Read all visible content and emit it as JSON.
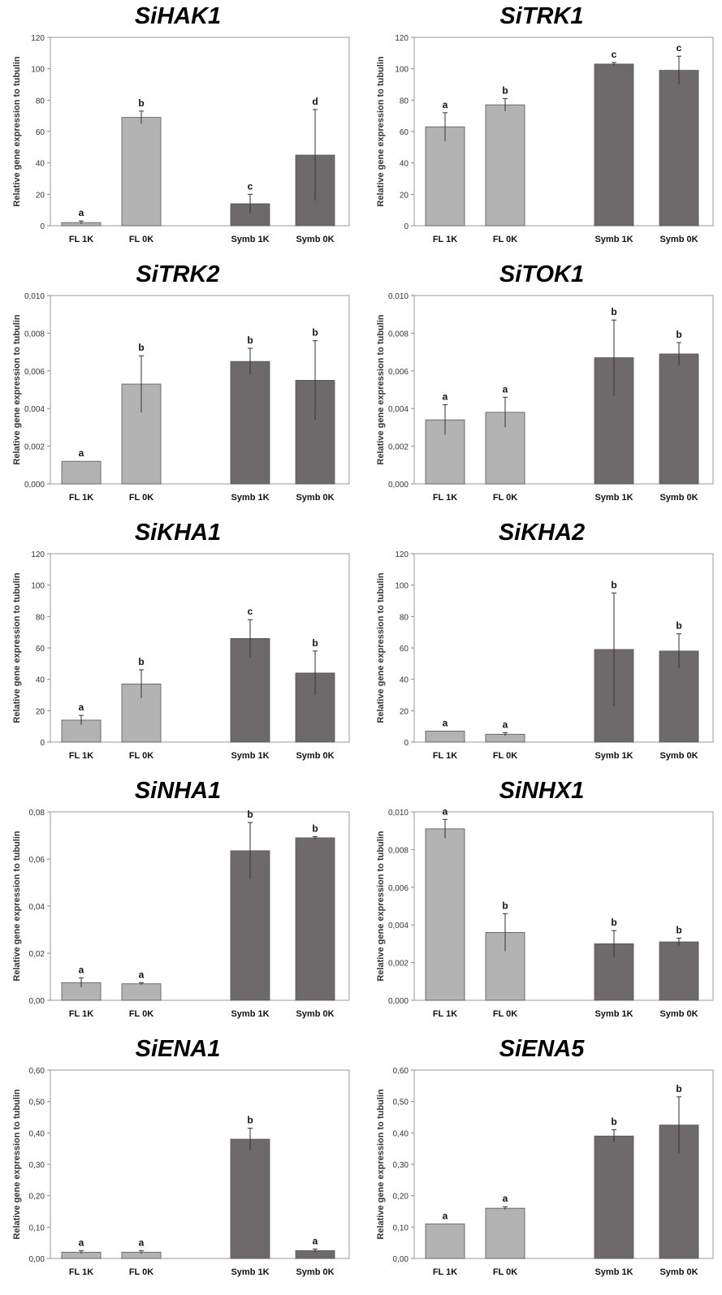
{
  "colors": {
    "fl": "#b3b3b3",
    "symb": "#6e6a6b",
    "axis": "#8a8a8a",
    "frame": "#999999"
  },
  "ylabel_text": "Relative gene expression to tubulin",
  "chart_data": [
    {
      "type": "bar",
      "title": "SiHAK1",
      "xlabel": "",
      "ylabel": "Relative gene expression to tubulin",
      "categories": [
        "FL 1K",
        "FL 0K",
        "Symb 1K",
        "Symb 0K"
      ],
      "values": [
        2,
        69,
        14,
        45
      ],
      "errors": [
        1,
        4,
        6,
        29
      ],
      "letters": [
        "a",
        "b",
        "c",
        "d"
      ],
      "ylim": [
        0,
        120
      ],
      "yticks": [
        "0",
        "20",
        "40",
        "60",
        "80",
        "100",
        "120"
      ],
      "grid": false
    },
    {
      "type": "bar",
      "title": "SiTRK1",
      "xlabel": "",
      "ylabel": "Relative gene expression to tubulin",
      "categories": [
        "FL 1K",
        "FL 0K",
        "Symb 1K",
        "Symb 0K"
      ],
      "values": [
        63,
        77,
        103,
        99
      ],
      "errors": [
        9,
        4,
        1,
        9
      ],
      "letters": [
        "a",
        "b",
        "c",
        "c"
      ],
      "ylim": [
        0,
        120
      ],
      "yticks": [
        "0",
        "20",
        "40",
        "60",
        "80",
        "100",
        "120"
      ],
      "grid": false
    },
    {
      "type": "bar",
      "title": "SiTRK2",
      "xlabel": "",
      "ylabel": "Relative gene expression to tubulin",
      "categories": [
        "FL 1K",
        "FL 0K",
        "Symb 1K",
        "Symb 0K"
      ],
      "values": [
        0.0012,
        0.0053,
        0.0065,
        0.0055
      ],
      "errors": [
        0,
        0.0015,
        0.0007,
        0.0021
      ],
      "letters": [
        "a",
        "b",
        "b",
        "b"
      ],
      "ylim": [
        0,
        0.01
      ],
      "yticks": [
        "0,000",
        "0,002",
        "0,004",
        "0,006",
        "0,008",
        "0,010"
      ],
      "grid": false
    },
    {
      "type": "bar",
      "title": "SiTOK1",
      "xlabel": "",
      "ylabel": "Relative gene expression to tubulin",
      "categories": [
        "FL 1K",
        "FL 0K",
        "Symb 1K",
        "Symb 0K"
      ],
      "values": [
        0.0034,
        0.0038,
        0.0067,
        0.0069
      ],
      "errors": [
        0.0008,
        0.0008,
        0.002,
        0.0006
      ],
      "letters": [
        "a",
        "a",
        "b",
        "b"
      ],
      "ylim": [
        0,
        0.01
      ],
      "yticks": [
        "0,000",
        "0,002",
        "0,004",
        "0,006",
        "0,008",
        "0,010"
      ],
      "grid": false
    },
    {
      "type": "bar",
      "title": "SiKHA1",
      "xlabel": "",
      "ylabel": "Relative gene expression to tubulin",
      "categories": [
        "FL 1K",
        "FL 0K",
        "Symb 1K",
        "Symb 0K"
      ],
      "values": [
        14,
        37,
        66,
        44
      ],
      "errors": [
        3,
        9,
        12,
        14
      ],
      "letters": [
        "a",
        "b",
        "c",
        "b"
      ],
      "ylim": [
        0,
        120
      ],
      "yticks": [
        "0",
        "20",
        "40",
        "60",
        "80",
        "100",
        "120"
      ],
      "grid": false
    },
    {
      "type": "bar",
      "title": "SiKHA2",
      "xlabel": "",
      "ylabel": "Relative gene expression to tubulin",
      "categories": [
        "FL 1K",
        "FL 0K",
        "Symb 1K",
        "Symb 0K"
      ],
      "values": [
        7,
        5,
        59,
        58
      ],
      "errors": [
        0,
        1,
        36,
        11
      ],
      "letters": [
        "a",
        "a",
        "b",
        "b"
      ],
      "ylim": [
        0,
        120
      ],
      "yticks": [
        "0",
        "20",
        "40",
        "60",
        "80",
        "100",
        "120"
      ],
      "grid": false
    },
    {
      "type": "bar",
      "title": "SiNHA1",
      "xlabel": "",
      "ylabel": "Relative gene expression to tubulin",
      "categories": [
        "FL 1K",
        "FL 0K",
        "Symb 1K",
        "Symb 0K"
      ],
      "values": [
        0.0075,
        0.007,
        0.0635,
        0.069
      ],
      "errors": [
        0.002,
        0.0005,
        0.012,
        0.0005
      ],
      "letters": [
        "a",
        "a",
        "b",
        "b"
      ],
      "ylim": [
        0,
        0.08
      ],
      "yticks": [
        "0,00",
        "0,02",
        "0,04",
        "0,06",
        "0,08"
      ],
      "grid": false
    },
    {
      "type": "bar",
      "title": "SiNHX1",
      "xlabel": "",
      "ylabel": "Relative gene expression to tubulin",
      "categories": [
        "FL 1K",
        "FL 0K",
        "Symb 1K",
        "Symb 0K"
      ],
      "values": [
        0.0091,
        0.0036,
        0.003,
        0.0031
      ],
      "errors": [
        0.0005,
        0.001,
        0.0007,
        0.0002
      ],
      "letters": [
        "a",
        "b",
        "b",
        "b"
      ],
      "ylim": [
        0,
        0.01
      ],
      "yticks": [
        "0,000",
        "0,002",
        "0,004",
        "0,006",
        "0,008",
        "0,010"
      ],
      "grid": false
    },
    {
      "type": "bar",
      "title": "SiENA1",
      "xlabel": "",
      "ylabel": "Relative gene expression to tubulin",
      "categories": [
        "FL 1K",
        "FL 0K",
        "Symb 1K",
        "Symb 0K"
      ],
      "values": [
        0.02,
        0.02,
        0.38,
        0.025
      ],
      "errors": [
        0.005,
        0.005,
        0.035,
        0.005
      ],
      "letters": [
        "a",
        "a",
        "b",
        "a"
      ],
      "ylim": [
        0,
        0.6
      ],
      "yticks": [
        "0,00",
        "0,10",
        "0,20",
        "0,30",
        "0,40",
        "0,50",
        "0,60"
      ],
      "grid": false
    },
    {
      "type": "bar",
      "title": "SiENA5",
      "xlabel": "",
      "ylabel": "Relative gene expression to tubulin",
      "categories": [
        "FL 1K",
        "FL 0K",
        "Symb 1K",
        "Symb 0K"
      ],
      "values": [
        0.11,
        0.16,
        0.39,
        0.425
      ],
      "errors": [
        0,
        0.005,
        0.02,
        0.09
      ],
      "letters": [
        "a",
        "a",
        "b",
        "b"
      ],
      "ylim": [
        0,
        0.6
      ],
      "yticks": [
        "0,00",
        "0,10",
        "0,20",
        "0,30",
        "0,40",
        "0,50",
        "0,60"
      ],
      "grid": false
    }
  ]
}
